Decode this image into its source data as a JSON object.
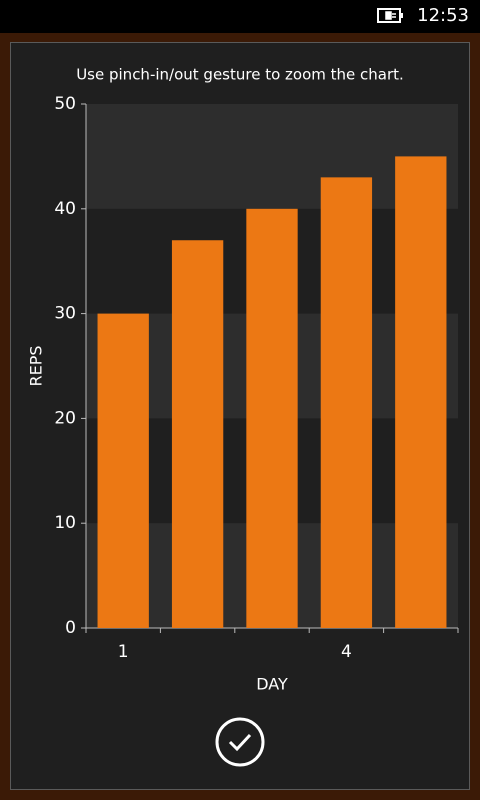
{
  "status_bar": {
    "time": "12:53"
  },
  "dialog": {
    "hint": "Use pinch-in/out gesture to zoom the chart."
  },
  "chart_data": {
    "type": "bar",
    "x_label": "DAY",
    "y_label": "REPS",
    "categories": [
      "1",
      null,
      null,
      "4",
      null
    ],
    "values": [
      30,
      37,
      40,
      43,
      45
    ],
    "color": "#ec7814",
    "ylim": [
      0,
      50
    ],
    "yticks": [
      0,
      10,
      20,
      30,
      40,
      50
    ],
    "grid": true
  }
}
